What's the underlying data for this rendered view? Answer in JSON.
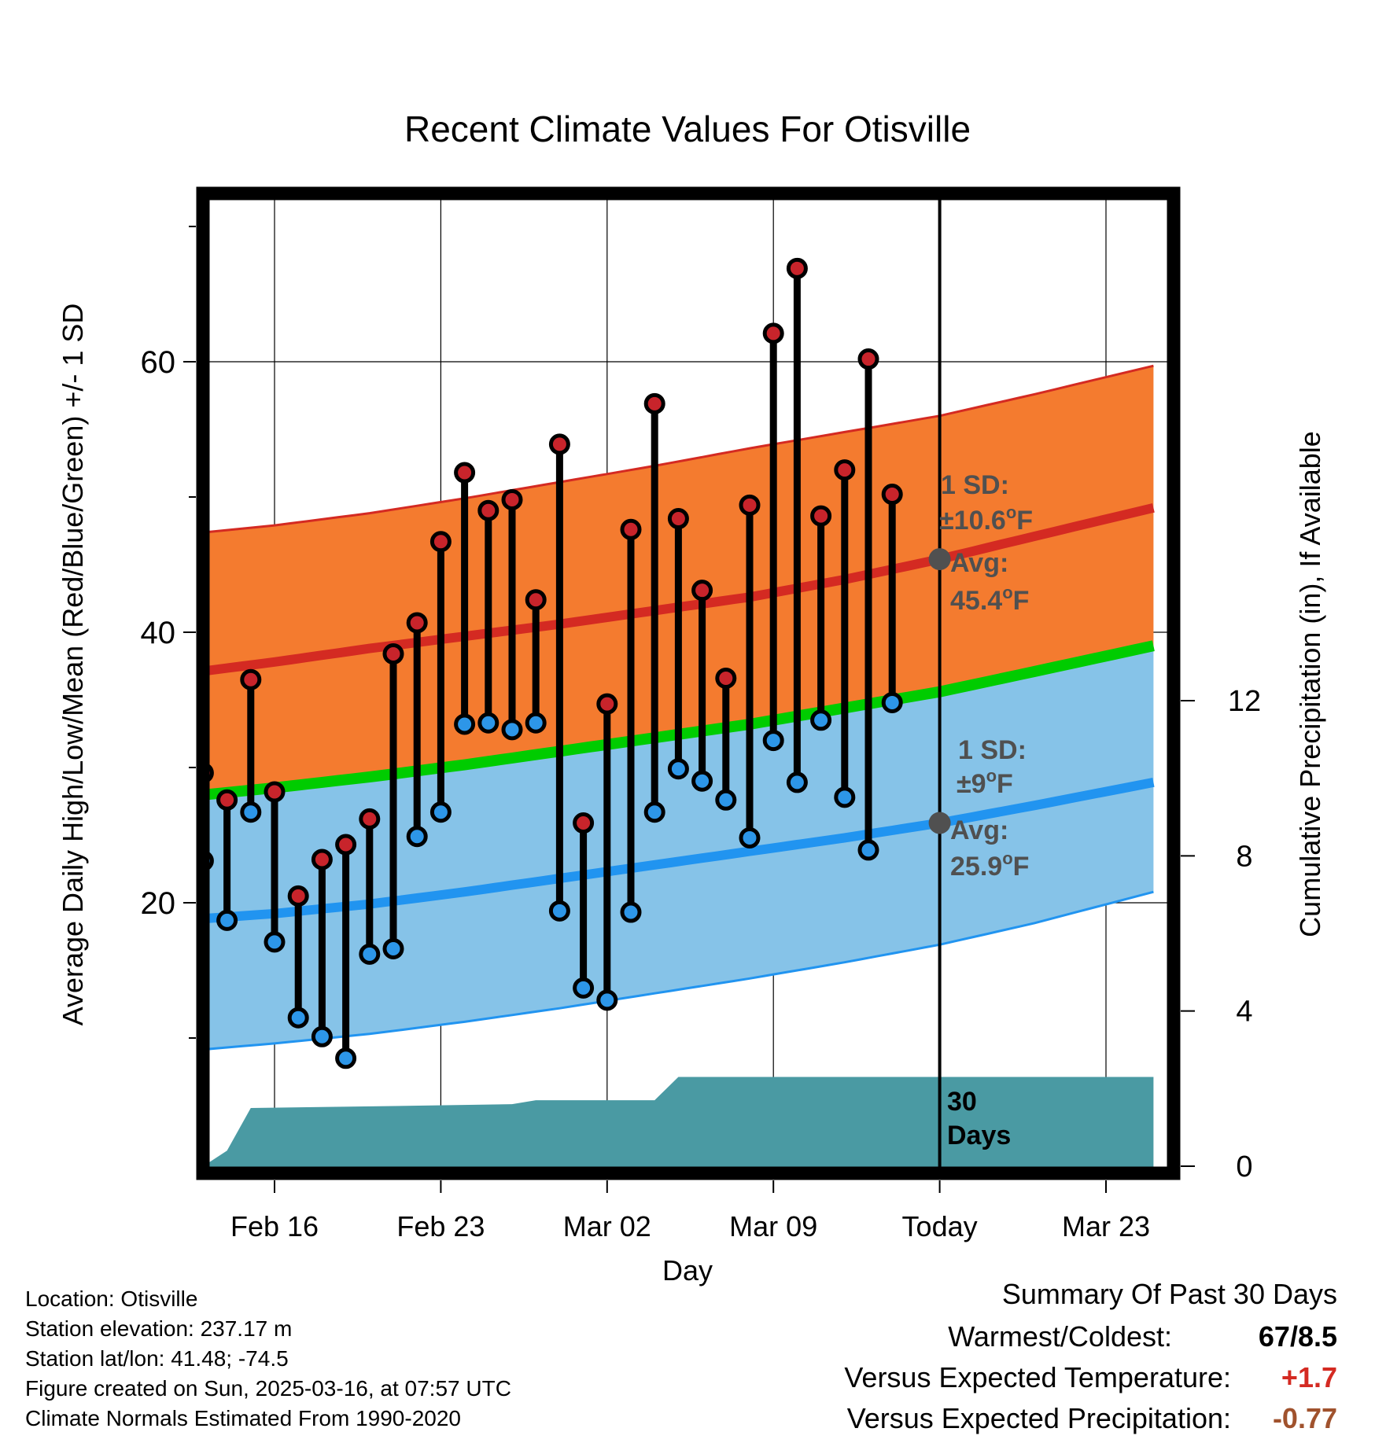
{
  "chart_data": {
    "type": "line",
    "title": "Recent Climate Values For Otisville",
    "xlabel": "Day",
    "ylabel": "Average Daily High/Low/Mean (Red/Blue/Green) +/- 1 SD",
    "y2label": "Cumulative Precipitation (in), If Available",
    "x_range": [
      "2025-02-12",
      "2025-03-25"
    ],
    "x_ticks": [
      {
        "date": "2025-02-16",
        "label": "Feb 16"
      },
      {
        "date": "2025-02-23",
        "label": "Feb 23"
      },
      {
        "date": "2025-03-02",
        "label": "Mar 02"
      },
      {
        "date": "2025-03-09",
        "label": "Mar 09"
      },
      {
        "date": "2025-03-16",
        "label": "Today"
      },
      {
        "date": "2025-03-23",
        "label": "Mar 23"
      }
    ],
    "ylim": [
      2,
      73
    ],
    "y_ticks": [
      20,
      40,
      60
    ],
    "y2lim": [
      0,
      30
    ],
    "y2_ticks": [
      0,
      4,
      8,
      12
    ],
    "grid": true,
    "today": "2025-03-16",
    "dates": [
      "2025-02-13",
      "2025-02-14",
      "2025-02-15",
      "2025-02-16",
      "2025-02-17",
      "2025-02-18",
      "2025-02-19",
      "2025-02-20",
      "2025-02-21",
      "2025-02-22",
      "2025-02-23",
      "2025-02-24",
      "2025-02-25",
      "2025-02-26",
      "2025-02-27",
      "2025-02-28",
      "2025-03-01",
      "2025-03-02",
      "2025-03-03",
      "2025-03-04",
      "2025-03-05",
      "2025-03-06",
      "2025-03-07",
      "2025-03-08",
      "2025-03-09",
      "2025-03-10",
      "2025-03-11",
      "2025-03-12",
      "2025-03-13",
      "2025-03-14",
      "2025-03-15"
    ],
    "observed_high": [
      29.6,
      27.6,
      36.5,
      28.2,
      20.5,
      23.2,
      24.3,
      26.2,
      38.4,
      40.7,
      46.7,
      51.8,
      49.0,
      49.8,
      42.4,
      53.9,
      25.9,
      34.7,
      47.6,
      56.9,
      48.4,
      43.1,
      36.6,
      49.4,
      62.1,
      66.9,
      48.6,
      52.0,
      60.2,
      50.2
    ],
    "observed_low": [
      23.1,
      18.7,
      26.7,
      17.1,
      11.5,
      10.1,
      8.5,
      16.2,
      16.6,
      24.9,
      26.7,
      33.2,
      33.3,
      32.8,
      33.3,
      19.4,
      13.7,
      12.8,
      19.3,
      26.7,
      29.9,
      29.0,
      27.6,
      24.8,
      32.0,
      28.9,
      33.5,
      27.8,
      23.9,
      34.8
    ],
    "observed_dates": [
      "2025-02-13",
      "2025-02-14",
      "2025-02-15",
      "2025-02-16",
      "2025-02-17",
      "2025-02-18",
      "2025-02-19",
      "2025-02-20",
      "2025-02-21",
      "2025-02-22",
      "2025-02-23",
      "2025-02-24",
      "2025-02-25",
      "2025-02-26",
      "2025-02-27",
      "2025-02-28",
      "2025-03-01",
      "2025-03-02",
      "2025-03-03",
      "2025-03-04",
      "2025-03-05",
      "2025-03-06",
      "2025-03-07",
      "2025-03-08",
      "2025-03-09",
      "2025-03-10",
      "2025-03-11",
      "2025-03-12",
      "2025-03-13",
      "2025-03-14"
    ],
    "normals": {
      "dates": [
        "2025-02-12",
        "2025-02-16",
        "2025-02-20",
        "2025-02-24",
        "2025-02-28",
        "2025-03-04",
        "2025-03-08",
        "2025-03-12",
        "2025-03-16",
        "2025-03-20",
        "2025-03-25"
      ],
      "high_avg": [
        36.9,
        37.8,
        38.8,
        39.7,
        40.6,
        41.6,
        42.6,
        43.9,
        45.4,
        47.1,
        49.2
      ],
      "high_sd_upper": [
        47.2,
        47.9,
        48.8,
        49.9,
        51.1,
        52.3,
        53.6,
        54.8,
        56.0,
        57.6,
        59.7
      ],
      "low_avg": [
        18.7,
        19.2,
        19.9,
        20.8,
        21.8,
        22.8,
        23.8,
        24.8,
        25.9,
        27.2,
        28.9
      ],
      "low_sd_lower": [
        9.0,
        9.6,
        10.3,
        11.2,
        12.2,
        13.3,
        14.4,
        15.6,
        16.9,
        18.5,
        20.8
      ],
      "mean_avg": [
        27.8,
        28.5,
        29.3,
        30.2,
        31.2,
        32.2,
        33.2,
        34.4,
        35.6,
        37.1,
        39.0
      ],
      "high_sd": "±10.6°F",
      "low_sd": "±9°F"
    },
    "precip": {
      "dates": [
        "2025-02-13",
        "2025-02-14",
        "2025-02-15",
        "2025-02-21",
        "2025-02-26",
        "2025-02-27",
        "2025-03-04",
        "2025-03-05",
        "2025-03-16",
        "2025-03-25"
      ],
      "cumulative": [
        0.0,
        0.4,
        1.5,
        1.55,
        1.6,
        1.7,
        1.7,
        2.3,
        2.3,
        2.3
      ]
    },
    "annotations": {
      "high_sd_label": "1 SD:",
      "high_sd_value": "±10.6",
      "high_avg_label": "Avg:",
      "high_avg_value": "45.4",
      "low_sd_label": "1 SD:",
      "low_sd_value": "±9",
      "low_avg_label": "Avg:",
      "low_avg_value": "25.9",
      "unit": "F",
      "degree": "o",
      "days_num": "30",
      "days_word": "Days"
    },
    "colors": {
      "high_band": "#f47b2f",
      "high_line": "#d42a22",
      "low_band": "#86c3e8",
      "low_line": "#2194f0",
      "mean_line": "#00cc00",
      "precip": "#4a9aa3",
      "high_dot": "#c8242b",
      "low_dot": "#2d96e8",
      "annotation": "#505050"
    }
  },
  "meta": {
    "location": "Location: Otisville",
    "elevation": "Station elevation: 237.17 m",
    "latlon": "Station lat/lon: 41.48; -74.5",
    "created": "Figure created on Sun, 2025-03-16, at 07:57 UTC",
    "normals": "Climate Normals Estimated From 1990-2020"
  },
  "summary": {
    "title": "Summary Of Past 30 Days",
    "rows": [
      {
        "label": "Warmest/Coldest:",
        "value": "67/8.5",
        "color": "#000000"
      },
      {
        "label": "Versus Expected Temperature:",
        "value": "+1.7",
        "color": "#d42a22"
      },
      {
        "label": "Versus Expected Precipitation:",
        "value": "-0.77",
        "color": "#a0522d"
      }
    ]
  }
}
